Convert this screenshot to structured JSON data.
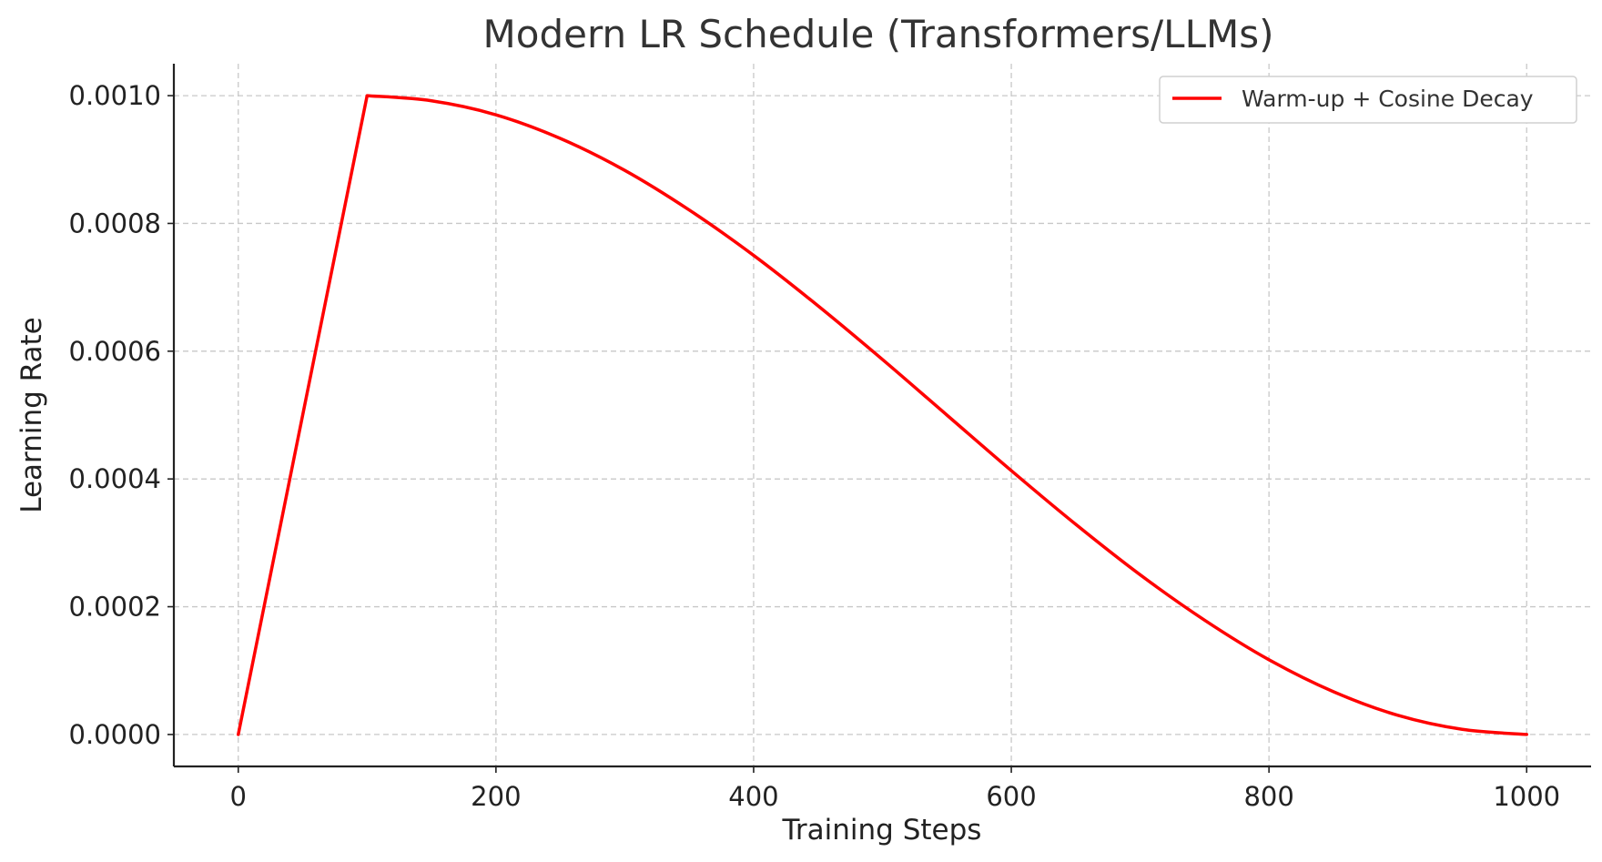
{
  "chart_data": {
    "type": "line",
    "title": "Modern LR Schedule (Transformers/LLMs)",
    "xlabel": "Training Steps",
    "ylabel": "Learning Rate",
    "xlim": [
      -50,
      1050
    ],
    "ylim": [
      -5e-05,
      0.00105
    ],
    "xticks": [
      0,
      200,
      400,
      600,
      800,
      1000
    ],
    "xtick_labels": [
      "0",
      "200",
      "400",
      "600",
      "800",
      "1000"
    ],
    "yticks": [
      0.0,
      0.0002,
      0.0004,
      0.0006,
      0.0008,
      0.001
    ],
    "ytick_labels": [
      "0.0000",
      "0.0002",
      "0.0004",
      "0.0006",
      "0.0008",
      "0.0010"
    ],
    "grid": true,
    "legend_position": "top-right",
    "series": [
      {
        "name": "Warm-up + Cosine Decay",
        "color": "#ff0000",
        "x": [
          0,
          100,
          150,
          200,
          250,
          300,
          350,
          400,
          450,
          500,
          550,
          600,
          650,
          700,
          750,
          800,
          850,
          900,
          950,
          1000
        ],
        "y": [
          0.0,
          0.001,
          0.000992,
          0.00097,
          0.000933,
          0.000883,
          0.000821,
          0.00075,
          0.000671,
          0.000587,
          0.0005,
          0.000413,
          0.000329,
          0.00025,
          0.000179,
          0.000117,
          6.7e-05,
          3e-05,
          8e-06,
          0.0
        ]
      }
    ]
  }
}
